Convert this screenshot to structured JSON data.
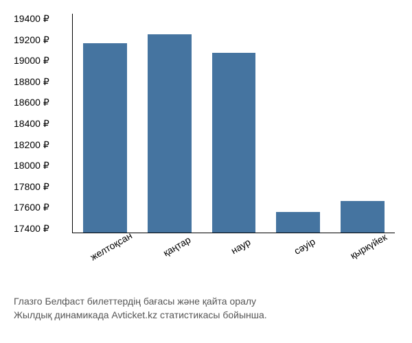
{
  "chart": {
    "type": "bar",
    "ylim": [
      17400,
      19400
    ],
    "ytick_step": 200,
    "y_suffix": " ₽",
    "yticks": [
      "19400 ₽",
      "19200 ₽",
      "19000 ₽",
      "18800 ₽",
      "18600 ₽",
      "18400 ₽",
      "18200 ₽",
      "18000 ₽",
      "17800 ₽",
      "17600 ₽",
      "17400 ₽"
    ],
    "categories": [
      "желтоқсан",
      "қаңтар",
      "наур",
      "сәуір",
      "қыркүйек"
    ],
    "values": [
      19130,
      19210,
      19040,
      17590,
      17690
    ],
    "bar_color": "#4574a0",
    "background_color": "#ffffff",
    "axis_color": "#000000",
    "label_fontsize": 14,
    "label_color": "#000000",
    "x_label_rotation": -30
  },
  "caption": {
    "line1": "Глазго Белфаст билеттердің бағасы және қайта оралу",
    "line2": "Жылдық динамикада Avticket.kz статистикасы бойынша.",
    "color": "#555555",
    "fontsize": 14
  }
}
